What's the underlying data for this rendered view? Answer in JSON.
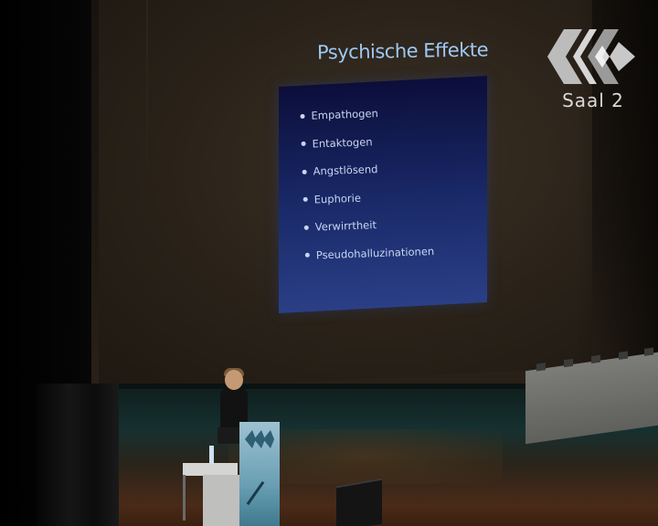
{
  "slide": {
    "title": "Psychische Effekte",
    "bullets": [
      "Empathogen",
      "Entaktogen",
      "Angstlösend",
      "Euphorie",
      "Verwirrtheit",
      "Pseudohalluzinationen"
    ]
  },
  "overlay": {
    "channel_label": "Saal 2",
    "logo_icon": "congress-logo-icon"
  },
  "colors": {
    "slide_title": "#9ec8f5",
    "slide_text": "#c7d6f0",
    "slide_bg": "#1a2a6a",
    "podium": "#6a9fb4",
    "overlay_text": "#d9d9d9"
  }
}
